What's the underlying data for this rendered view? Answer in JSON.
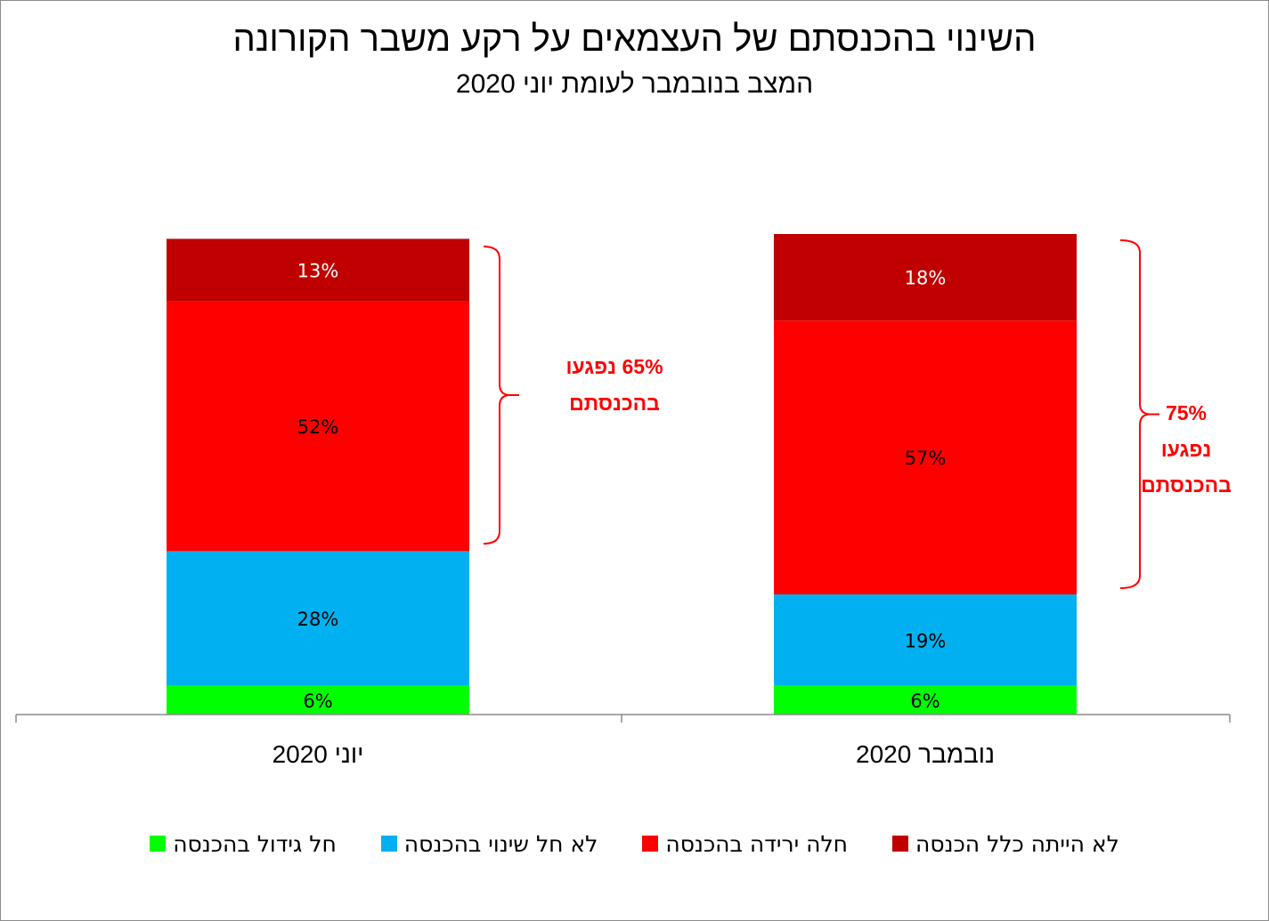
{
  "chart_data": {
    "type": "bar",
    "stacked": true,
    "title": "השינוי בהכנסתם של העצמאים על רקע משבר הקורונה",
    "subtitle": "המצב בנובמבר לעומת יוני 2020",
    "categories": [
      "יוני 2020",
      "נובמבר 2020"
    ],
    "ylim": [
      0,
      100
    ],
    "grid": false,
    "legend_position": "bottom",
    "series": [
      {
        "name": "חל גידול בהכנסה",
        "color": "#00ff00",
        "values": [
          6,
          6
        ],
        "labels": [
          "6%",
          "6%"
        ]
      },
      {
        "name": "לא חל שינוי בהכנסה",
        "color": "#00b0f0",
        "values": [
          28,
          19
        ],
        "labels": [
          "28%",
          "19%"
        ]
      },
      {
        "name": "חלה ירידה בהכנסה",
        "color": "#ff0000",
        "values": [
          52,
          57
        ],
        "labels": [
          "52%",
          "57%"
        ]
      },
      {
        "name": "לא הייתה כלל הכנסה",
        "color": "#c00000",
        "values": [
          13,
          18
        ],
        "labels": [
          "13%",
          "18%"
        ]
      }
    ],
    "annotations": [
      {
        "category": "יוני 2020",
        "spans_series": [
          "חלה ירידה בהכנסה",
          "לא הייתה כלל הכנסה"
        ],
        "lines": [
          "65% נפגעו",
          "בהכנסתם"
        ],
        "color": "#ff0000"
      },
      {
        "category": "נובמבר 2020",
        "spans_series": [
          "חלה ירידה בהכנסה",
          "לא הייתה כלל הכנסה"
        ],
        "lines": [
          "75%",
          "נפגעו",
          "בהכנסתם"
        ],
        "color": "#ff0000"
      }
    ]
  }
}
